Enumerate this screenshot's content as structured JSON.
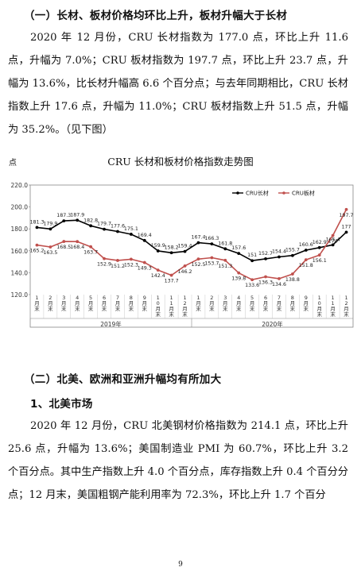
{
  "section1": {
    "heading": "（一）长材、板材价格均环比上升，板材升幅大于长材",
    "paragraph": "2020 年 12 月份，CRU 长材指数为 177.0 点，环比上升 11.6 点，升幅为 7.0%；CRU 板材指数为 197.7 点，环比上升 23.7 点，升幅为 13.6%，比长材升幅高 6.6 个百分点；与去年同期相比，CRU 长材指数上升 17.6 点，升幅为 11.0%；CRU 板材指数上升 51.5 点，升幅为 35.2%。（见下图）"
  },
  "chart_data": {
    "type": "line",
    "title": "CRU 长材和板材价格指数走势图",
    "ylabel": "点",
    "ylim": [
      120.0,
      220.0
    ],
    "yticks": [
      "120.0",
      "140.0",
      "160.0",
      "180.0",
      "200.0",
      "220.0"
    ],
    "grid": false,
    "legend_position": "top-right",
    "categories": [
      "1月末",
      "2月末",
      "3月末",
      "4月末",
      "5月末",
      "6月末",
      "7月末",
      "8月末",
      "9月末",
      "10月末",
      "11月末",
      "12月末",
      "1月末",
      "2月末",
      "3月末",
      "4月末",
      "5月末",
      "6月末",
      "7月末",
      "8月末",
      "9月末",
      "10月末",
      "11月末",
      "12月末"
    ],
    "category_labels": [
      "1月末",
      "2月末",
      "3月末",
      "4月末",
      "5月末",
      "6月末",
      "7月末",
      "8月末",
      "9月末",
      "10月末",
      "11月末",
      "12月末",
      "1月末",
      "2月末",
      "3月末",
      "4月末",
      "5月末",
      "6月末",
      "7月末",
      "8月末",
      "9月末",
      "10月末",
      "11月末",
      "12月末"
    ],
    "year_groups": [
      {
        "label": "2019年",
        "count": 12
      },
      {
        "label": "2020年",
        "count": 12
      }
    ],
    "series": [
      {
        "name": "CRU长材",
        "color": "#000000",
        "values": [
          181.3,
          179.9,
          187.3,
          187.9,
          182.8,
          179.7,
          177.6,
          175.1,
          169.4,
          159.9,
          158.2,
          159.4,
          167.4,
          166.3,
          161.8,
          157.6,
          151.0,
          152.7,
          154.4,
          155.7,
          160.6,
          162.9,
          165.4,
          177
        ]
      },
      {
        "name": "CRU板材",
        "color": "#c0504d",
        "values": [
          165.2,
          163.5,
          168.5,
          168.4,
          163.7,
          152.9,
          151.2,
          152.3,
          149.3,
          142.4,
          137.7,
          146.2,
          152.5,
          153.7,
          151.3,
          139.8,
          133.6,
          136.3,
          134.6,
          138.8,
          151.8,
          156.1,
          174,
          197.7
        ]
      }
    ]
  },
  "section2": {
    "heading": "（二）北美、欧洲和亚洲升幅均有所加大",
    "subheading": "1、北美市场",
    "paragraph": "2020 年 12 月份，CRU 北美钢材价格指数为 214.1 点，环比上升 25.6 点，升幅为 13.6%；美国制造业 PMI 为 60.7%，环比上升 3.2 个百分点。其中生产指数上升 4.0 个百分点，库存指数上升 0.4 个百分分点；12 月末，美国粗钢产能利用率为 72.3%，环比上升 1.7 个百分"
  },
  "page_number": "9"
}
